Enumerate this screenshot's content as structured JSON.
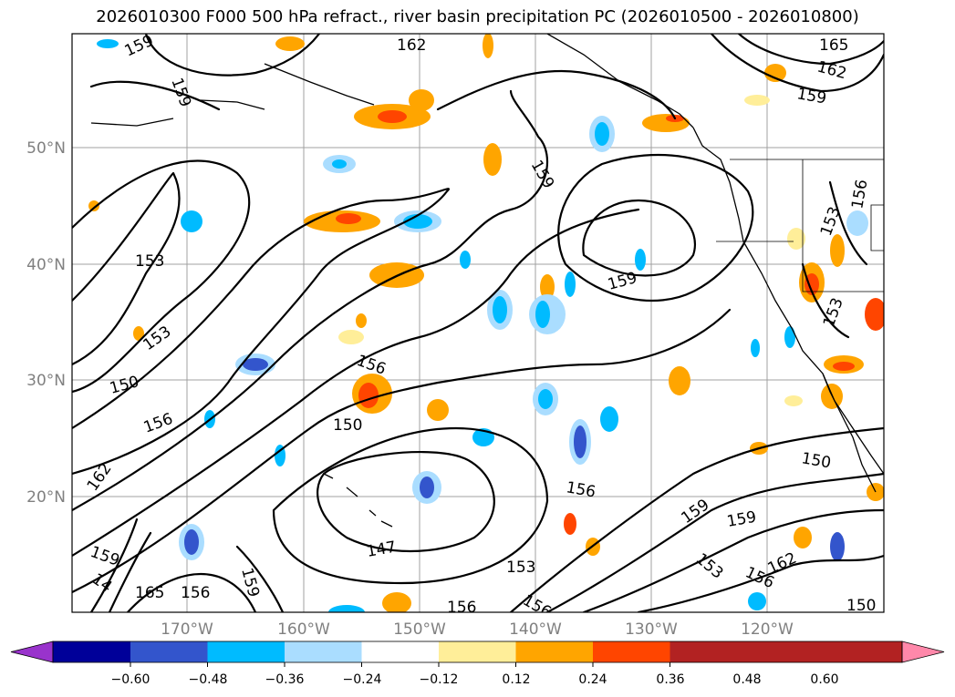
{
  "title": "2026010300 F000 500 hPa refract., river basin precipitation PC (2026010500 - 2026010800)",
  "map": {
    "lat_labels": [
      "50°N",
      "40°N",
      "30°N",
      "20°N"
    ],
    "lon_labels": [
      "170°W",
      "160°W",
      "150°W",
      "140°W",
      "130°W",
      "120°W"
    ],
    "contour_labels": [
      "159",
      "162",
      "165",
      "162",
      "159",
      "159",
      "159",
      "153",
      "153",
      "150",
      "156",
      "150",
      "156",
      "162",
      "159",
      "156",
      "147",
      "153",
      "156",
      "156",
      "159",
      "159",
      "150",
      "153",
      "156",
      "162",
      "150",
      "153",
      "156",
      "153",
      "165",
      "156",
      "159",
      "159",
      "14"
    ]
  },
  "colorbar": {
    "colors": [
      "#9933cc",
      "#000099",
      "#3355cc",
      "#00bbff",
      "#aaddff",
      "#ffffff",
      "#ffee99",
      "#ffa500",
      "#ff4500",
      "#b22222",
      "#ff88aa"
    ],
    "ticks": [
      "−0.60",
      "−0.48",
      "−0.36",
      "−0.24",
      "−0.12",
      "0.12",
      "0.24",
      "0.36",
      "0.48",
      "0.60"
    ],
    "extend": "both"
  }
}
